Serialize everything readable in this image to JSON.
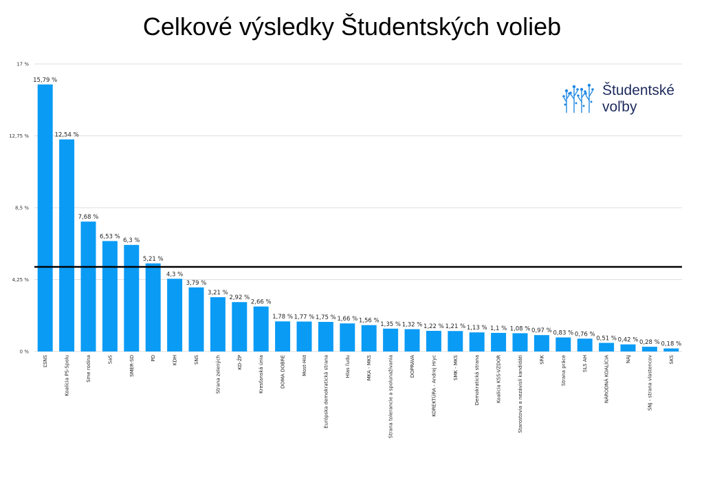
{
  "logo": {
    "line1": "Študentské",
    "line2": "voľby",
    "icon": "tree-dots-icon",
    "color": "#1e88e5"
  },
  "chart_data": {
    "type": "bar",
    "title": "Celkové výsledky Študentských volieb",
    "xlabel": "",
    "ylabel": "",
    "ylim": [
      0,
      17
    ],
    "yticks": [
      0,
      4.25,
      8.5,
      12.75,
      17
    ],
    "ytick_labels": [
      "0 %",
      "4,25 %",
      "8,5 %",
      "12,75 %",
      "17 %"
    ],
    "grid": true,
    "threshold": 5,
    "bar_color": "#0a9bf5",
    "threshold_color": "#000000",
    "categories": [
      "ĽSNS",
      "Koalícia PS-Spolu",
      "Sme rodina",
      "SaS",
      "SMER-SD",
      "PD",
      "KDH",
      "SNS",
      "Strana zelených",
      "KD-ŽP",
      "Kresťanská únia",
      "DOMA DOBRE",
      "Most-Híd",
      "Európska demokratická strana",
      "Hlas ľudu",
      "MKA - MKS",
      "Strana tolerancie a spolunažívania",
      "DOPRAVA",
      "KOREKTÚRA - Andrej Hryc",
      "SMK - MKS",
      "Demokratická strana",
      "Koalícia KSS-VZDOR",
      "Starostovia a nezávislí kandidáti",
      "SRK",
      "Strana práce",
      "SLS AH",
      "NÁRODNÁ KOALÍCIA",
      "NAJ",
      "SNJ - strana vlastencov",
      "SKS"
    ],
    "values": [
      15.79,
      12.54,
      7.68,
      6.53,
      6.3,
      5.21,
      4.3,
      3.79,
      3.21,
      2.92,
      2.66,
      1.78,
      1.77,
      1.75,
      1.66,
      1.56,
      1.35,
      1.32,
      1.22,
      1.21,
      1.13,
      1.1,
      1.08,
      0.97,
      0.83,
      0.76,
      0.51,
      0.42,
      0.28,
      0.18
    ],
    "value_labels": [
      "15,79 %",
      "12,54 %",
      "7,68 %",
      "6,53 %",
      "6,3 %",
      "5,21 %",
      "4,3 %",
      "3,79 %",
      "3,21 %",
      "2,92 %",
      "2,66 %",
      "1,78 %",
      "1,77 %",
      "1,75 %",
      "1,66 %",
      "1,56 %",
      "1,35 %",
      "1,32 %",
      "1,22 %",
      "1,21 %",
      "1,13 %",
      "1,1 %",
      "1,08 %",
      "0,97 %",
      "0,83 %",
      "0,76 %",
      "0,51 %",
      "0,42 %",
      "0,28 %",
      "0,18 %"
    ]
  }
}
